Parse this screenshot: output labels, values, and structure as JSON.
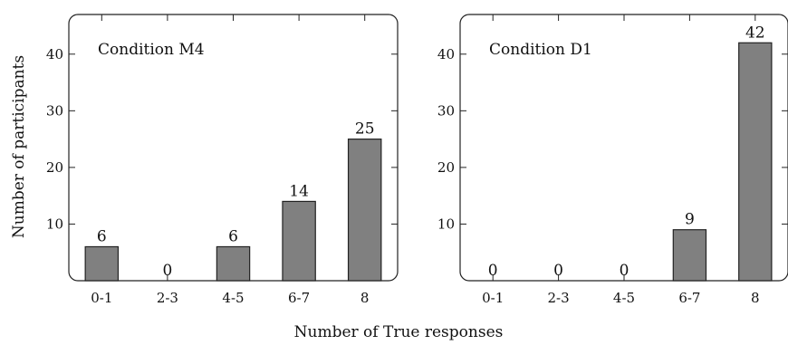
{
  "chart_data": [
    {
      "type": "bar",
      "title": "Condition M4",
      "categories": [
        "0-1",
        "2-3",
        "4-5",
        "6-7",
        "8"
      ],
      "values": [
        6,
        0,
        6,
        14,
        25
      ],
      "ylim": [
        0,
        47
      ],
      "yticks": [
        10,
        20,
        30,
        40
      ],
      "ylabel": "Number of participants"
    },
    {
      "type": "bar",
      "title": "Condition D1",
      "categories": [
        "0-1",
        "2-3",
        "4-5",
        "6-7",
        "8"
      ],
      "values": [
        0,
        0,
        0,
        9,
        42
      ],
      "ylim": [
        0,
        47
      ],
      "yticks": [
        10,
        20,
        30,
        40
      ],
      "ylabel": ""
    }
  ],
  "xlabel": "Number of True responses",
  "colors": {
    "bar_fill": "#808080",
    "bar_stroke": "#222222"
  }
}
